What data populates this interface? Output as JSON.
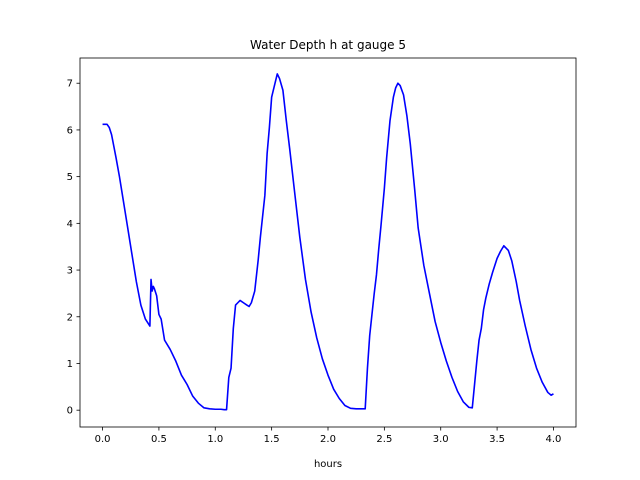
{
  "chart_data": {
    "type": "line",
    "title": "Water Depth h at gauge 5",
    "xlabel": "hours",
    "ylabel": "",
    "xlim": [
      -0.2,
      4.2
    ],
    "ylim": [
      -0.36,
      7.54
    ],
    "xticks": [
      0.0,
      0.5,
      1.0,
      1.5,
      2.0,
      2.5,
      3.0,
      3.5,
      4.0
    ],
    "xtick_labels": [
      "0.0",
      "0.5",
      "1.0",
      "1.5",
      "2.0",
      "2.5",
      "3.0",
      "3.5",
      "4.0"
    ],
    "yticks": [
      0,
      1,
      2,
      3,
      4,
      5,
      6,
      7
    ],
    "ytick_labels": [
      "0",
      "1",
      "2",
      "3",
      "4",
      "5",
      "6",
      "7"
    ],
    "grid": false,
    "colors": {
      "line": "#0000ff",
      "axes": "#000000",
      "background": "#ffffff"
    },
    "series": [
      {
        "x": [
          0.0,
          0.04,
          0.06,
          0.08,
          0.1,
          0.12,
          0.15,
          0.18,
          0.22,
          0.26,
          0.3,
          0.34,
          0.38,
          0.42,
          0.43,
          0.44,
          0.45,
          0.46,
          0.48,
          0.5,
          0.52,
          0.55,
          0.6,
          0.65,
          0.7,
          0.75,
          0.8,
          0.85,
          0.9,
          0.95,
          1.0,
          1.05,
          1.08,
          1.1,
          1.12,
          1.14,
          1.16,
          1.18,
          1.2,
          1.22,
          1.25,
          1.28,
          1.3,
          1.32,
          1.35,
          1.38,
          1.4,
          1.44,
          1.46,
          1.48,
          1.5,
          1.53,
          1.55,
          1.57,
          1.6,
          1.63,
          1.66,
          1.7,
          1.75,
          1.8,
          1.85,
          1.9,
          1.95,
          2.0,
          2.05,
          2.1,
          2.15,
          2.2,
          2.25,
          2.3,
          2.33,
          2.35,
          2.37,
          2.39,
          2.41,
          2.43,
          2.45,
          2.47,
          2.5,
          2.52,
          2.55,
          2.58,
          2.6,
          2.62,
          2.64,
          2.67,
          2.7,
          2.73,
          2.77,
          2.8,
          2.85,
          2.9,
          2.95,
          3.0,
          3.05,
          3.1,
          3.15,
          3.2,
          3.25,
          3.28,
          3.3,
          3.32,
          3.34,
          3.36,
          3.38,
          3.4,
          3.43,
          3.46,
          3.5,
          3.53,
          3.56,
          3.6,
          3.63,
          3.67,
          3.7,
          3.75,
          3.8,
          3.85,
          3.9,
          3.95,
          3.98,
          4.0
        ],
        "y": [
          6.12,
          6.12,
          6.05,
          5.9,
          5.65,
          5.4,
          5.0,
          4.55,
          3.95,
          3.35,
          2.75,
          2.25,
          1.95,
          1.8,
          2.8,
          2.55,
          2.65,
          2.6,
          2.45,
          2.05,
          1.95,
          1.5,
          1.3,
          1.05,
          0.75,
          0.55,
          0.3,
          0.15,
          0.05,
          0.03,
          0.02,
          0.02,
          0.01,
          0.01,
          0.7,
          0.9,
          1.75,
          2.25,
          2.3,
          2.35,
          2.3,
          2.25,
          2.22,
          2.3,
          2.55,
          3.2,
          3.7,
          4.6,
          5.5,
          6.05,
          6.7,
          7.0,
          7.2,
          7.1,
          6.85,
          6.2,
          5.6,
          4.75,
          3.7,
          2.8,
          2.1,
          1.55,
          1.1,
          0.75,
          0.45,
          0.25,
          0.1,
          0.04,
          0.03,
          0.03,
          0.03,
          0.9,
          1.6,
          2.05,
          2.5,
          2.9,
          3.45,
          3.95,
          4.75,
          5.4,
          6.2,
          6.7,
          6.9,
          7.0,
          6.95,
          6.75,
          6.3,
          5.7,
          4.7,
          3.9,
          3.1,
          2.5,
          1.9,
          1.45,
          1.05,
          0.7,
          0.4,
          0.18,
          0.06,
          0.05,
          0.55,
          1.05,
          1.5,
          1.75,
          2.15,
          2.4,
          2.7,
          2.95,
          3.25,
          3.4,
          3.52,
          3.42,
          3.2,
          2.75,
          2.35,
          1.8,
          1.3,
          0.9,
          0.6,
          0.38,
          0.32,
          0.35
        ]
      }
    ]
  }
}
